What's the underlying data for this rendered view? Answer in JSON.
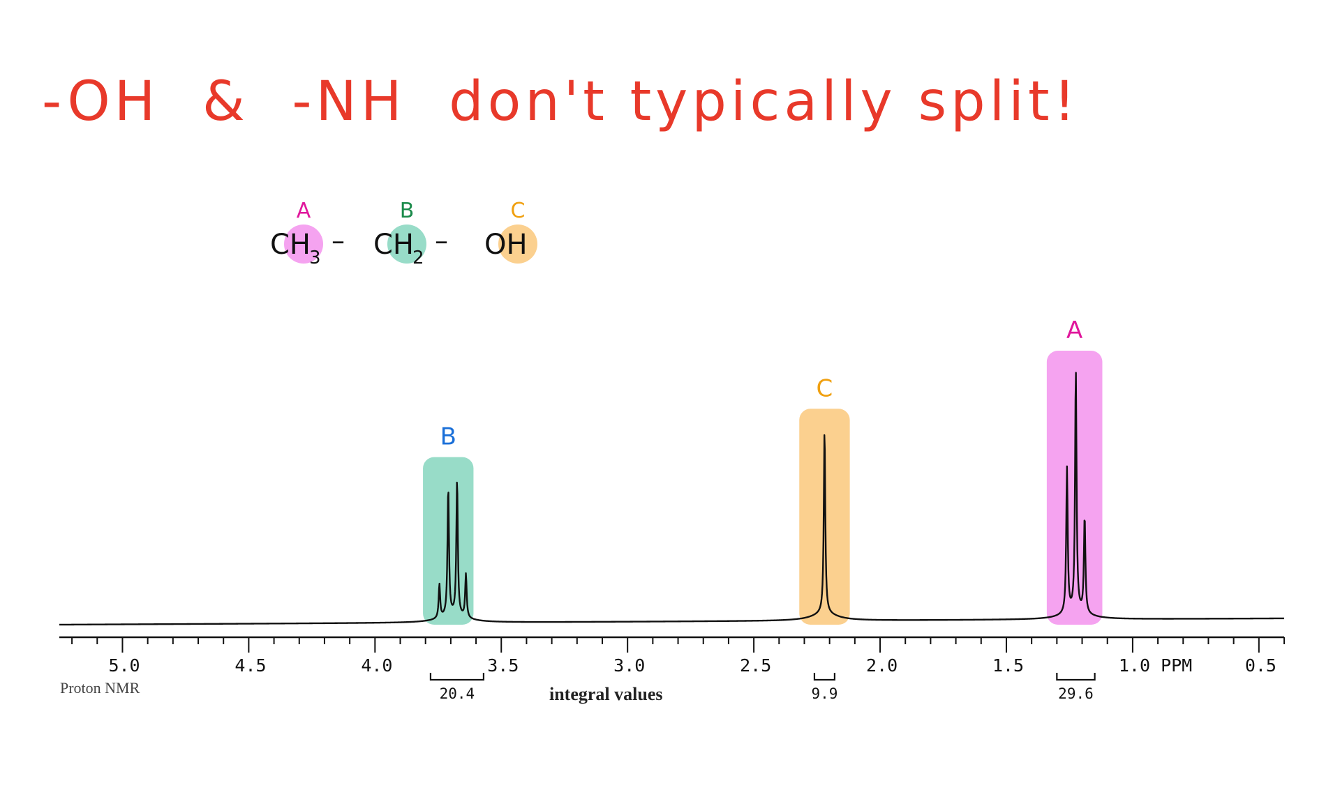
{
  "headline": "-OH  &  -NH  don't typically split!",
  "molecule": {
    "groups": [
      {
        "label": "A",
        "text": "CH",
        "sub": "3",
        "color": "#f5a3f0",
        "label_color": "#e0179c"
      },
      {
        "label": "B",
        "text": "CH",
        "sub": "2",
        "color": "#98dcc8",
        "label_color": "#1a8a4a"
      },
      {
        "label": "C",
        "text": "OH",
        "sub": "",
        "color": "#fbd08f",
        "label_color": "#f0a010"
      }
    ],
    "bond": "–"
  },
  "chart_data": {
    "type": "line",
    "title": "",
    "xlabel": "PPM",
    "xlim": [
      5.25,
      0.4
    ],
    "x_ticks": [
      5.0,
      4.5,
      4.0,
      3.5,
      3.0,
      2.5,
      2.0,
      1.5,
      1.0,
      0.5
    ],
    "x_tick_labels": [
      "5.0",
      "4.5",
      "4.0",
      "3.5",
      "3.0",
      "2.5",
      "2.0",
      "1.5",
      "1.0 PPM",
      "0.5"
    ],
    "peaks": [
      {
        "label": "B",
        "multiplicity": "quartet",
        "center": 3.69,
        "lines": [
          3.745,
          3.71,
          3.675,
          3.64
        ],
        "heights": [
          0.14,
          0.53,
          0.56,
          0.18
        ],
        "box": [
          3.61,
          3.81
        ],
        "integral": "20.4",
        "integral_range": [
          3.57,
          3.78
        ],
        "color": "#98dcc8",
        "label_color": "#1a6fd8"
      },
      {
        "label": "C",
        "multiplicity": "singlet",
        "center": 2.22,
        "lines": [
          2.22
        ],
        "heights": [
          0.76
        ],
        "box": [
          2.12,
          2.32
        ],
        "integral": "9.9",
        "integral_range": [
          2.18,
          2.26
        ],
        "color": "#fbd08f",
        "label_color": "#f0a010"
      },
      {
        "label": "A",
        "multiplicity": "triplet",
        "center": 1.225,
        "lines": [
          1.26,
          1.225,
          1.19
        ],
        "heights": [
          0.6,
          1.0,
          0.4
        ],
        "box": [
          1.12,
          1.34
        ],
        "integral": "29.6",
        "integral_range": [
          1.15,
          1.3
        ],
        "color": "#f5a3f0",
        "label_color": "#e0179c"
      }
    ],
    "corner_label": "Proton NMR",
    "integral_caption": "integral values",
    "grid": false
  }
}
